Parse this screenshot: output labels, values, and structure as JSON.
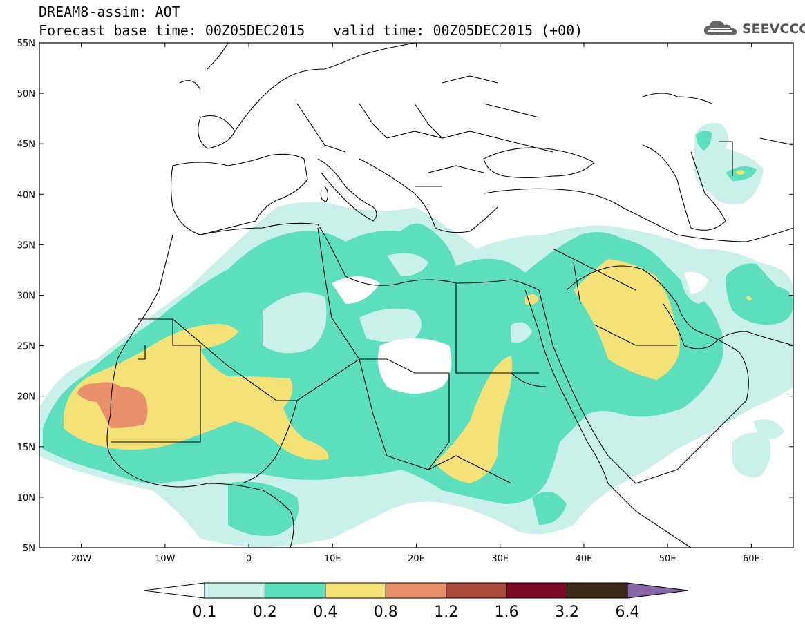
{
  "header": {
    "title": "DREAM8-assim: AOT",
    "base_time": "Forecast base time: 00Z05DEC2015",
    "valid_time": "valid time: 00Z05DEC2015 (+00)",
    "logo_text": "SEEVCCC"
  },
  "map": {
    "lon_range": [
      -25,
      65
    ],
    "lat_range": [
      5,
      55
    ],
    "lat_ticks": [
      "55N",
      "50N",
      "45N",
      "40N",
      "35N",
      "30N",
      "25N",
      "20N",
      "15N",
      "10N",
      "5N"
    ],
    "lon_ticks": [
      "20W",
      "10W",
      "0",
      "10E",
      "20E",
      "30E",
      "40E",
      "50E",
      "60E"
    ]
  },
  "colorbar": {
    "labels": [
      "0.1",
      "0.2",
      "0.4",
      "0.8",
      "1.2",
      "1.6",
      "3.2",
      "6.4"
    ],
    "colors": [
      "#ffffff",
      "#c9f1e9",
      "#5ddfbd",
      "#f4e278",
      "#e8916a",
      "#aa4a3a",
      "#7b0b27",
      "#3a2a18",
      "#8865a8"
    ]
  }
}
